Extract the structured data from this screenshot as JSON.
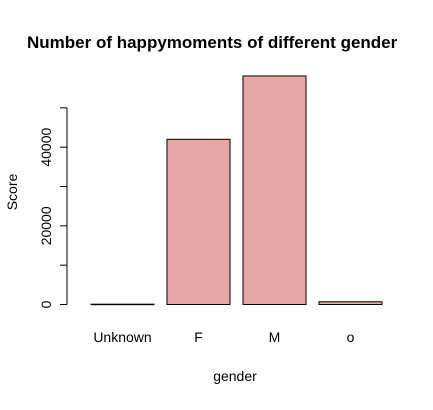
{
  "chart_data": {
    "type": "bar",
    "title": "Number of happymoments of different gender",
    "xlabel": "gender",
    "ylabel": "Score",
    "categories": [
      "Unknown",
      "F",
      "M",
      "o"
    ],
    "values": [
      80,
      42000,
      58100,
      700
    ],
    "ylim": [
      0,
      60000
    ],
    "yticks": [
      0,
      10000,
      20000,
      30000,
      40000,
      50000
    ],
    "ytick_labels": [
      "0",
      "",
      "20000",
      "",
      "40000",
      ""
    ],
    "bar_color": "#e8a7a7",
    "bar_edge_color": "#000000",
    "grid": false,
    "legend": "none"
  }
}
